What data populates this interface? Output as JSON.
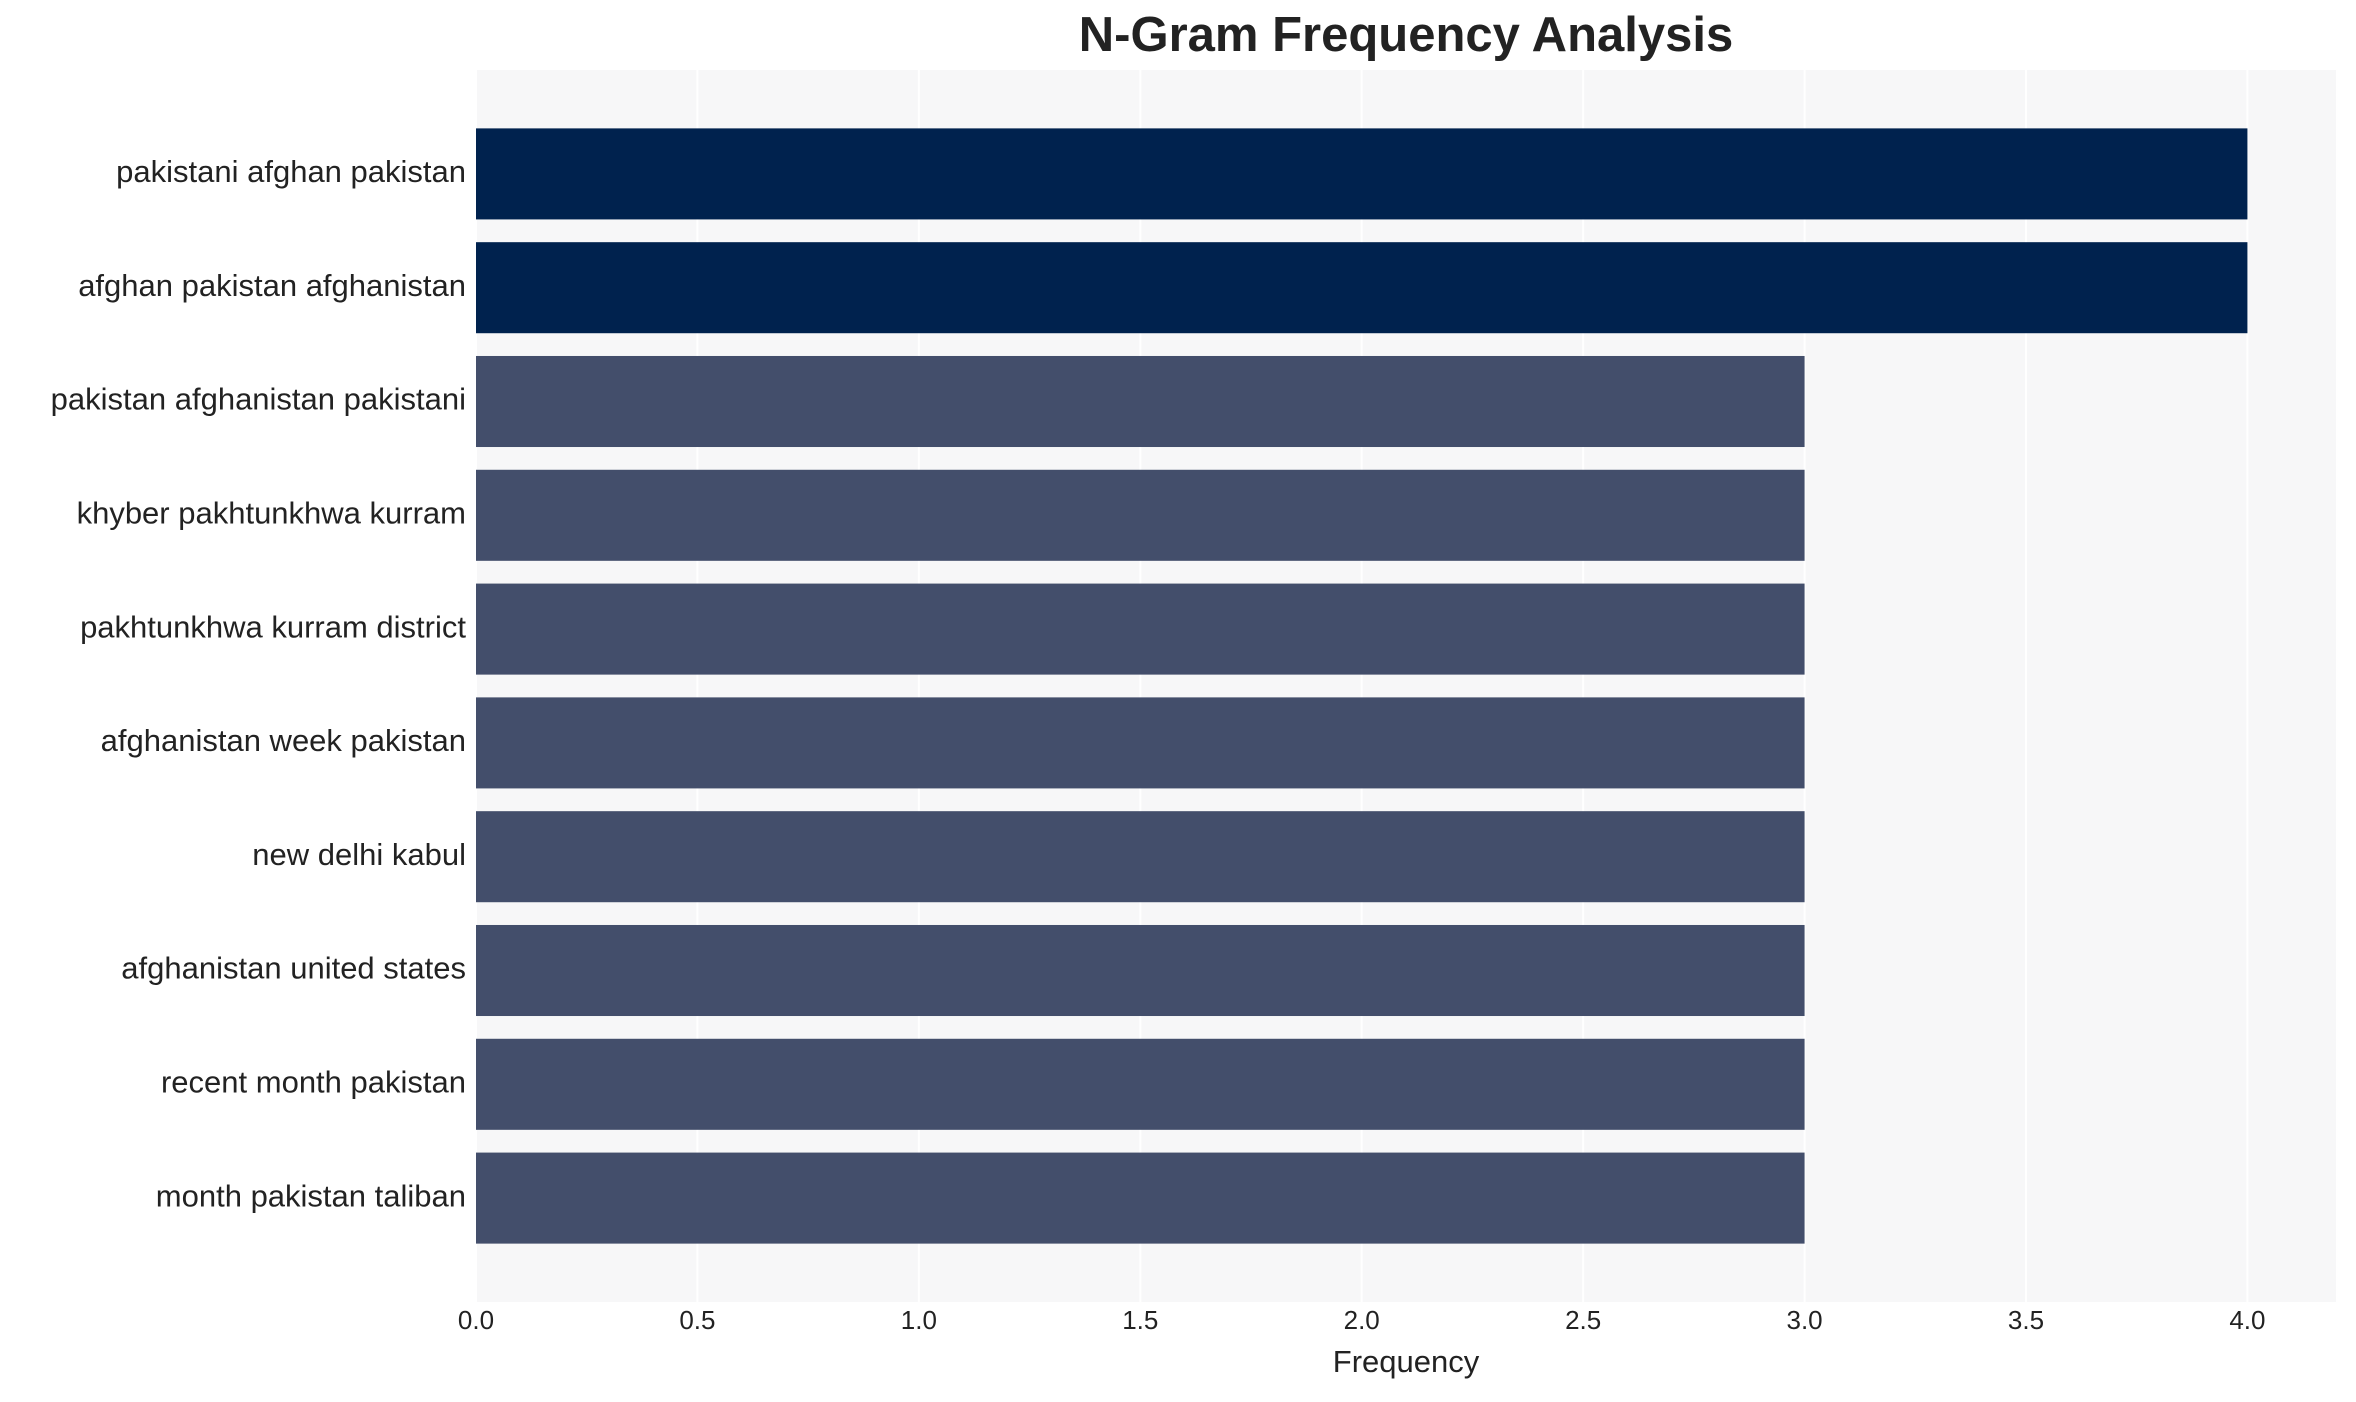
{
  "chart_data": {
    "type": "bar",
    "orientation": "horizontal",
    "title": "N-Gram Frequency Analysis",
    "x_label": "Frequency",
    "categories": [
      "pakistani afghan pakistan",
      "afghan pakistan afghanistan",
      "pakistan afghanistan pakistani",
      "khyber pakhtunkhwa kurram",
      "pakhtunkhwa kurram district",
      "afghanistan week pakistan",
      "new delhi kabul",
      "afghanistan united states",
      "recent month pakistan",
      "month pakistan taliban"
    ],
    "values": [
      4,
      4,
      3,
      3,
      3,
      3,
      3,
      3,
      3,
      3
    ],
    "colors": [
      "#00224e",
      "#00224e",
      "#434e6b",
      "#434e6b",
      "#434e6b",
      "#434e6b",
      "#434e6b",
      "#434e6b",
      "#434e6b",
      "#434e6b"
    ],
    "xlim": [
      0,
      4.2
    ],
    "xticks": [
      {
        "value": 0,
        "label": "0.0"
      },
      {
        "value": 0.5,
        "label": "0.5"
      },
      {
        "value": 1,
        "label": "1.0"
      },
      {
        "value": 1.5,
        "label": "1.5"
      },
      {
        "value": 2,
        "label": "2.0"
      },
      {
        "value": 2.5,
        "label": "2.5"
      },
      {
        "value": 3,
        "label": "3.0"
      },
      {
        "value": 3.5,
        "label": "3.5"
      },
      {
        "value": 4,
        "label": "4.0"
      }
    ],
    "grid": true
  }
}
